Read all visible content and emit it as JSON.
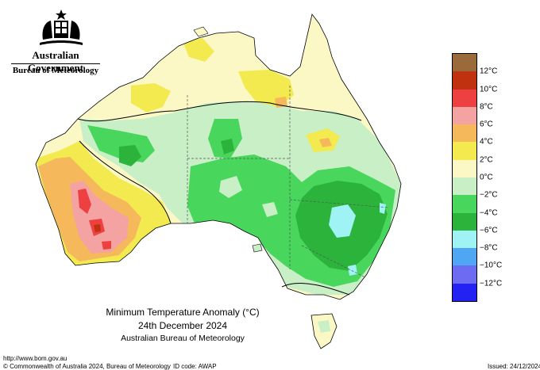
{
  "agency": {
    "government": "Australian Government",
    "bureau": "Bureau of Meteorology"
  },
  "map": {
    "title": "Minimum Temperature Anomaly (°C)",
    "date": "24th December 2024",
    "source": "Australian Bureau of Meteorology"
  },
  "legend": {
    "labels": [
      "12°C",
      "10°C",
      "8°C",
      "6°C",
      "4°C",
      "2°C",
      "0°C",
      "−2°C",
      "−4°C",
      "−6°C",
      "−8°C",
      "−10°C",
      "−12°C"
    ],
    "colors": [
      "#9b6a3b",
      "#c0310f",
      "#ee4040",
      "#f4a2a2",
      "#f5b85a",
      "#f2ea4e",
      "#fbf8c6",
      "#c9efc6",
      "#48d65c",
      "#2cb33c",
      "#9ff3f5",
      "#4fa6f2",
      "#6d6bf2",
      "#2222f2"
    ]
  },
  "footer": {
    "url": "http://www.bom.gov.au",
    "copyright": "© Commonwealth of Australia 2024, Bureau of Meteorology",
    "id_code": "ID code: AWAP",
    "issued": "Issued: 24/12/2024"
  }
}
